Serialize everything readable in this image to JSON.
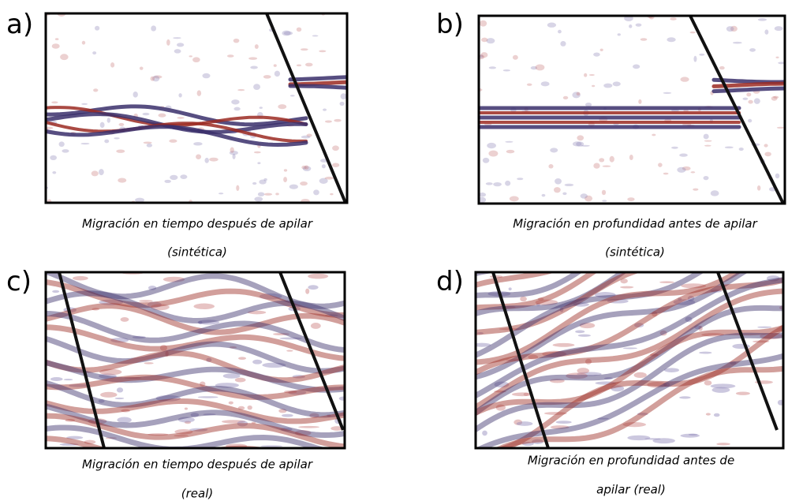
{
  "panels": [
    {
      "label": "a)",
      "caption": [
        "Migración en tiempo después de apilar",
        "(sintética)"
      ]
    },
    {
      "label": "b)",
      "caption": [
        "Migración en profundidad antes de apilar",
        "(sintética)"
      ]
    },
    {
      "label": "c)",
      "caption": [
        "Migración en tiempo después de apilar",
        "(real)"
      ]
    },
    {
      "label": "d)",
      "caption": [
        "Migración en profundidad antes de",
        "apilar (real)"
      ]
    }
  ]
}
